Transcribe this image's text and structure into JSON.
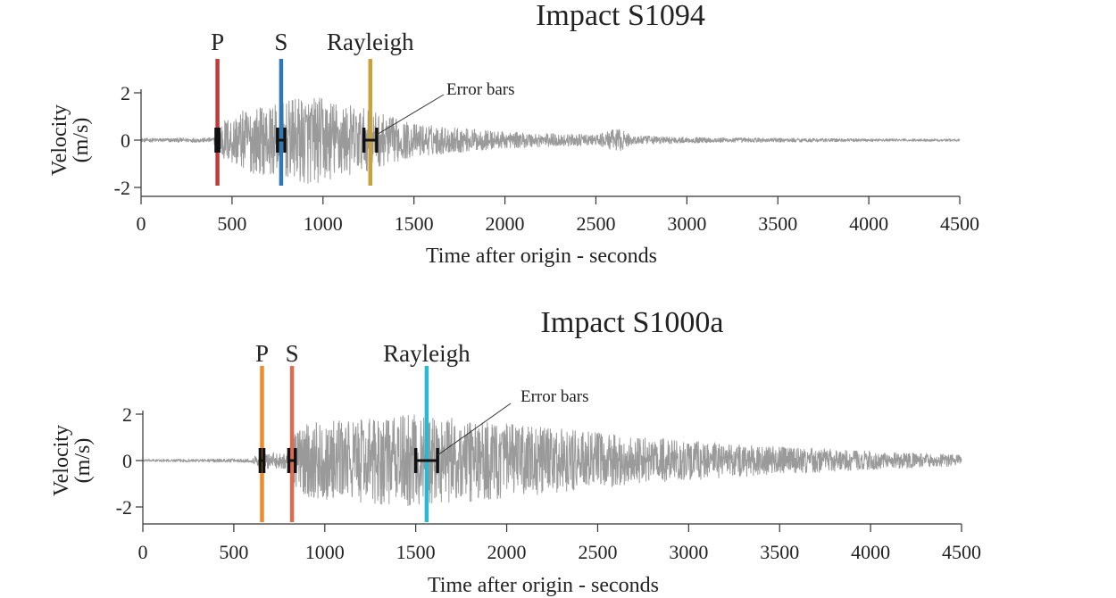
{
  "chart_data": [
    {
      "type": "line",
      "title": "Impact S1094",
      "xlabel": "Time after origin - seconds",
      "ylabel": [
        "Velocity",
        "(m/s)"
      ],
      "xlim": [
        0,
        4500
      ],
      "ylim": [
        -2,
        2
      ],
      "x_ticks": [
        "0",
        "500",
        "1000",
        "1500",
        "2000",
        "2500",
        "3000",
        "3500",
        "4000",
        "4500"
      ],
      "y_ticks": [
        "2",
        "0",
        "-2"
      ],
      "waveform_color": "#9a9a9a",
      "waveform_envelope": {
        "x": [
          0,
          400,
          430,
          600,
          750,
          900,
          1000,
          1200,
          1500,
          2000,
          2500,
          2620,
          2700,
          3000,
          3500,
          4000,
          4500
        ],
        "amplitude": [
          0.08,
          0.1,
          0.8,
          1.4,
          1.5,
          1.9,
          1.8,
          1.4,
          0.7,
          0.35,
          0.22,
          0.5,
          0.2,
          0.12,
          0.09,
          0.06,
          0.05
        ]
      },
      "phases": [
        {
          "label": "P",
          "time": 420,
          "color": "#c23b3b",
          "error_halfwidth": 8
        },
        {
          "label": "S",
          "time": 770,
          "color": "#2f78b8",
          "error_halfwidth": 20
        },
        {
          "label": "Rayleigh",
          "time": 1260,
          "color": "#c9a23a",
          "error_halfwidth": 35
        }
      ],
      "annotation": {
        "text": "Error bars",
        "points_to": "Rayleigh"
      }
    },
    {
      "type": "line",
      "title": "Impact S1000a",
      "xlabel": "Time after origin - seconds",
      "ylabel": [
        "Velocity",
        "(m/s)"
      ],
      "xlim": [
        0,
        4500
      ],
      "ylim": [
        -2,
        2
      ],
      "x_ticks": [
        "0",
        "500",
        "1000",
        "1500",
        "2000",
        "2500",
        "3000",
        "3500",
        "4000",
        "4500"
      ],
      "y_ticks": [
        "2",
        "0",
        "-2"
      ],
      "waveform_color": "#9a9a9a",
      "waveform_envelope": {
        "x": [
          0,
          600,
          640,
          800,
          830,
          900,
          1200,
          1500,
          1700,
          2000,
          2500,
          3000,
          3500,
          4000,
          4500
        ],
        "amplitude": [
          0.05,
          0.08,
          0.35,
          0.35,
          1.2,
          1.6,
          1.8,
          2.0,
          1.9,
          1.6,
          1.2,
          0.85,
          0.6,
          0.4,
          0.25
        ]
      },
      "phases": [
        {
          "label": "P",
          "time": 655,
          "color": "#f08a2c",
          "error_halfwidth": 10
        },
        {
          "label": "S",
          "time": 820,
          "color": "#e06a50",
          "error_halfwidth": 18
        },
        {
          "label": "Rayleigh",
          "time": 1560,
          "color": "#2ab8d4",
          "error_halfwidth": 60
        }
      ],
      "annotation": {
        "text": "Error bars",
        "points_to": "Rayleigh"
      }
    }
  ]
}
